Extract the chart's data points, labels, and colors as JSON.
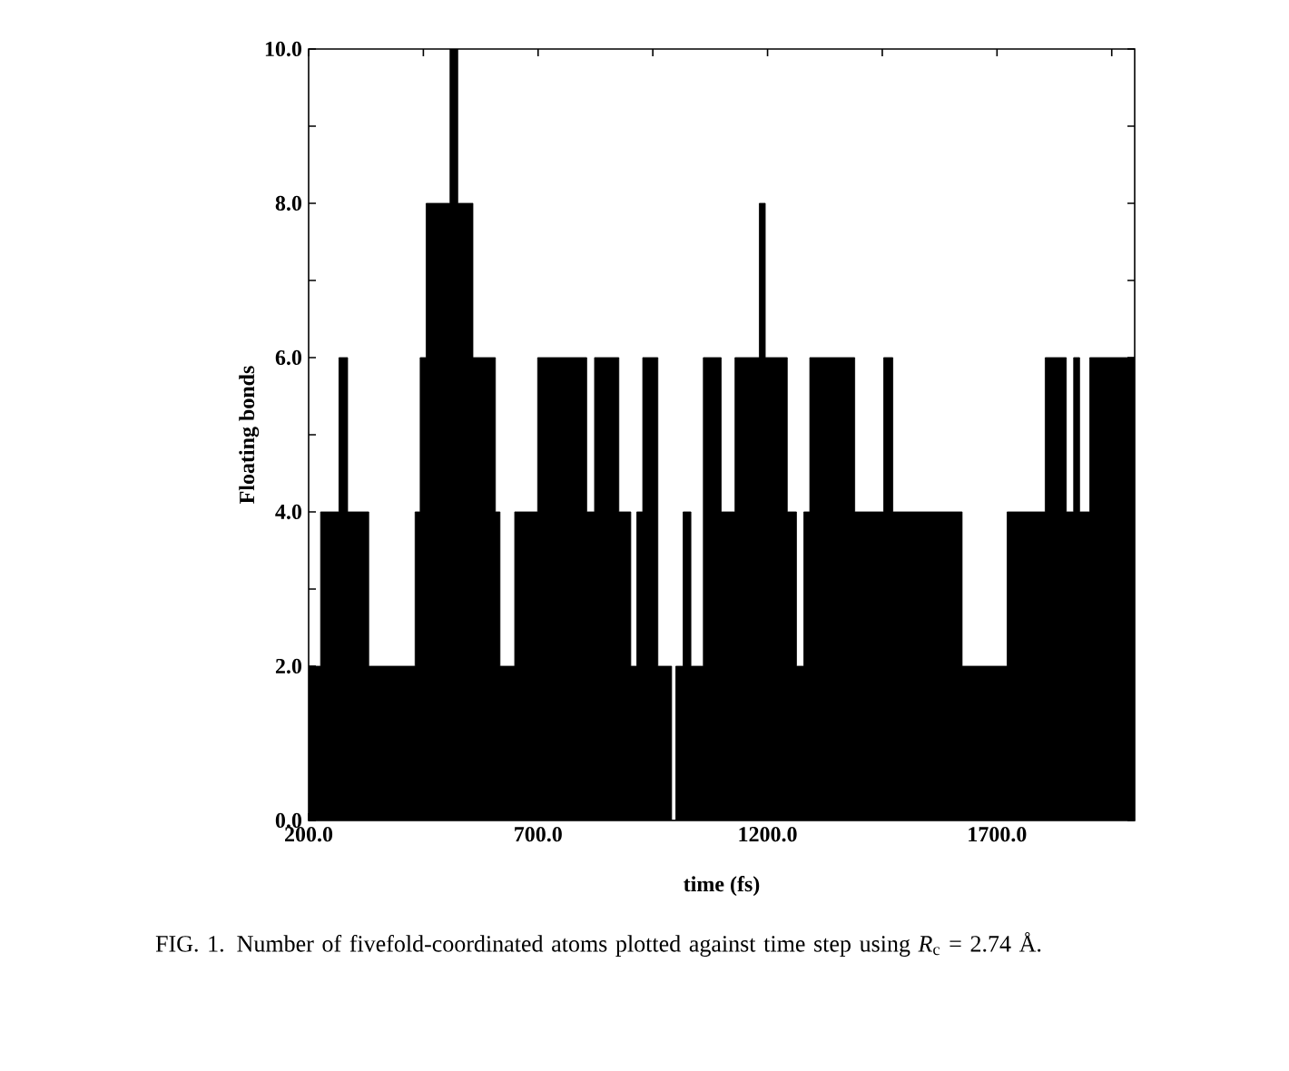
{
  "chart_data": {
    "type": "area",
    "xlabel": "time (**fs**)",
    "ylabel": "Floating bonds",
    "annotations": [
      "FIG. 1. Number of fivefold-coordinated atoms plotted against time step using *R*$_{c}$ = 2.74 Å."
    ],
    "x": [
      200,
      226,
      266,
      285,
      331,
      432,
      443,
      456,
      508,
      525,
      558,
      607,
      617,
      649,
      699,
      806,
      823,
      876,
      902,
      915,
      928,
      961,
      991,
      1000,
      1016,
      1033,
      1060,
      1099,
      1129,
      1182,
      1195,
      1243,
      1263,
      1279,
      1292,
      1390,
      1453,
      1473,
      1624,
      1722,
      1805,
      1851,
      1867,
      1880,
      1902,
      2000
    ],
    "values": [
      2,
      4,
      6,
      4,
      2,
      4,
      6,
      8,
      10,
      8,
      6,
      4,
      2,
      4,
      6,
      4,
      6,
      4,
      2,
      4,
      6,
      2,
      0,
      2,
      4,
      2,
      6,
      4,
      6,
      8,
      6,
      4,
      2,
      4,
      6,
      4,
      6,
      4,
      2,
      4,
      6,
      4,
      6,
      4,
      6,
      6
    ],
    "color": "#000000",
    "xlim": [
      200,
      2000
    ],
    "xticks": [
      {
        "value": 200,
        "label": "200.0"
      },
      {
        "value": 450,
        "label": null
      },
      {
        "value": 700,
        "label": "700.0"
      },
      {
        "value": 950,
        "label": null
      },
      {
        "value": 1200,
        "label": "1200.0"
      },
      {
        "value": 1450,
        "label": null
      },
      {
        "value": 1700,
        "label": "1700.0"
      },
      {
        "value": 1950,
        "label": null
      }
    ],
    "ylim": [
      0,
      10
    ],
    "yticks": [
      {
        "value": 0,
        "label": "0.0"
      },
      {
        "value": 1,
        "label": null
      },
      {
        "value": 2,
        "label": "2.0"
      },
      {
        "value": 3,
        "label": null
      },
      {
        "value": 4,
        "label": "4.0"
      },
      {
        "value": 5,
        "label": null
      },
      {
        "value": 6,
        "label": "6.0"
      },
      {
        "value": 7,
        "label": null
      },
      {
        "value": 8,
        "label": "8.0"
      },
      {
        "value": 9,
        "label": null
      },
      {
        "value": 10,
        "label": "10.0"
      }
    ]
  }
}
